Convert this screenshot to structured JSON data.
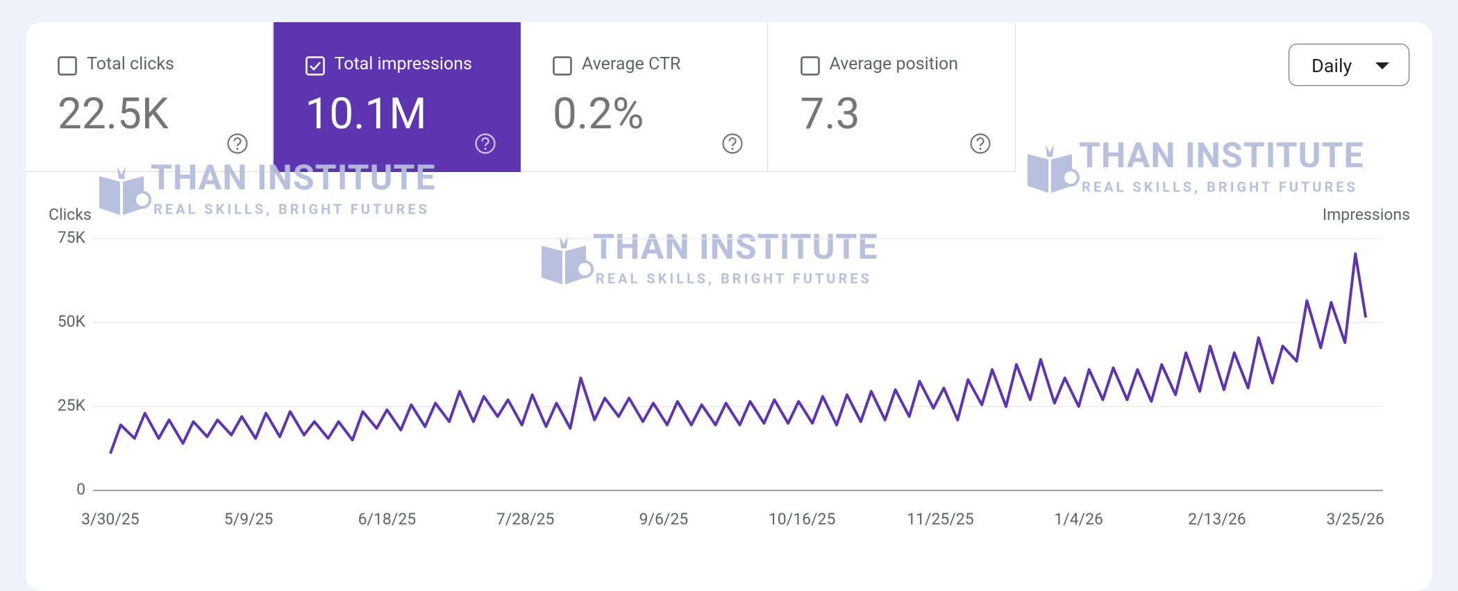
{
  "cards": [
    {
      "title": "Total clicks",
      "value": "22.5K",
      "checked": false
    },
    {
      "title": "Total impressions",
      "value": "10.1M",
      "checked": true
    },
    {
      "title": "Average CTR",
      "value": "0.2%",
      "checked": false
    },
    {
      "title": "Average position",
      "value": "7.3",
      "checked": false
    }
  ],
  "dropdown": {
    "label": "Daily"
  },
  "watermark": {
    "title": "THAN INSTITUTE",
    "tagline": "REAL SKILLS, BRIGHT FUTURES"
  },
  "chart_data": {
    "type": "line",
    "y_label": "Clicks",
    "y2_label": "Impressions",
    "x": [
      "3/30/25",
      "4/2/25",
      "4/6/25",
      "4/9/25",
      "4/13/25",
      "4/16/25",
      "4/20/25",
      "4/23/25",
      "4/27/25",
      "4/30/25",
      "5/4/25",
      "5/7/25",
      "5/11/25",
      "5/14/25",
      "5/18/25",
      "5/21/25",
      "5/25/25",
      "5/28/25",
      "6/1/25",
      "6/4/25",
      "6/8/25",
      "6/11/25",
      "6/15/25",
      "6/18/25",
      "6/22/25",
      "6/25/25",
      "6/29/25",
      "7/2/25",
      "7/6/25",
      "7/9/25",
      "7/13/25",
      "7/16/25",
      "7/20/25",
      "7/23/25",
      "7/27/25",
      "7/30/25",
      "8/3/25",
      "8/6/25",
      "8/10/25",
      "8/13/25",
      "8/17/25",
      "8/20/25",
      "8/24/25",
      "8/27/25",
      "8/31/25",
      "9/3/25",
      "9/7/25",
      "9/10/25",
      "9/14/25",
      "9/17/25",
      "9/21/25",
      "9/24/25",
      "9/28/25",
      "10/1/25",
      "10/5/25",
      "10/8/25",
      "10/12/25",
      "10/15/25",
      "10/19/25",
      "10/22/25",
      "10/26/25",
      "10/29/25",
      "11/2/25",
      "11/5/25",
      "11/9/25",
      "11/12/25",
      "11/16/25",
      "11/19/25",
      "11/23/25",
      "11/26/25",
      "11/30/25",
      "12/3/25",
      "12/7/25",
      "12/10/25",
      "12/14/25",
      "12/17/25",
      "12/21/25",
      "12/24/25",
      "12/28/25",
      "12/31/25",
      "1/4/26",
      "1/7/26",
      "1/11/26",
      "1/14/26",
      "1/18/26",
      "1/21/26",
      "1/25/26",
      "1/28/26",
      "2/1/26",
      "2/4/26",
      "2/8/26",
      "2/11/26",
      "2/15/26",
      "2/18/26",
      "2/22/26",
      "2/25/26",
      "3/1/26",
      "3/4/26",
      "3/8/26",
      "3/11/26",
      "3/15/26",
      "3/18/26",
      "3/22/26",
      "3/25/26",
      "3/28/26"
    ],
    "series": [
      {
        "name": "Clicks",
        "color": "#5e35b1",
        "values": [
          11000,
          19500,
          15500,
          23000,
          15500,
          21000,
          14000,
          20500,
          16000,
          21000,
          16500,
          22000,
          15500,
          23000,
          16000,
          23500,
          16500,
          20500,
          15500,
          20500,
          15000,
          23500,
          18500,
          24000,
          18000,
          25500,
          19000,
          26000,
          20500,
          29500,
          20500,
          28000,
          22000,
          27000,
          19500,
          28500,
          19000,
          26000,
          18500,
          33500,
          21000,
          27500,
          22000,
          27500,
          20500,
          26000,
          19500,
          26500,
          19500,
          25500,
          19500,
          26000,
          19500,
          26500,
          20000,
          27000,
          20000,
          26500,
          20000,
          28000,
          19500,
          28500,
          20500,
          29500,
          21000,
          30000,
          22000,
          32500,
          24500,
          30500,
          21000,
          33000,
          25500,
          36000,
          25000,
          37500,
          27000,
          39000,
          26000,
          33500,
          25000,
          36000,
          27000,
          36500,
          27000,
          36000,
          26500,
          37500,
          28500,
          41000,
          29500,
          43000,
          30000,
          41000,
          30500,
          45500,
          32000,
          43000,
          38500,
          56500,
          42500,
          56000,
          44000,
          70500,
          51500
        ]
      }
    ],
    "xlim": [
      "3/25/25",
      "4/2/26"
    ],
    "xticks": [
      "3/30/25",
      "5/9/25",
      "6/18/25",
      "7/28/25",
      "9/6/25",
      "10/16/25",
      "11/25/25",
      "1/4/26",
      "2/13/26",
      "3/25/26"
    ],
    "ylim": [
      0,
      75000
    ],
    "yticks": [
      0,
      {
        "value": 25000,
        "label": "25K"
      },
      {
        "value": 50000,
        "label": "50K"
      },
      {
        "value": 75000,
        "label": "75K"
      }
    ],
    "grid": true
  }
}
